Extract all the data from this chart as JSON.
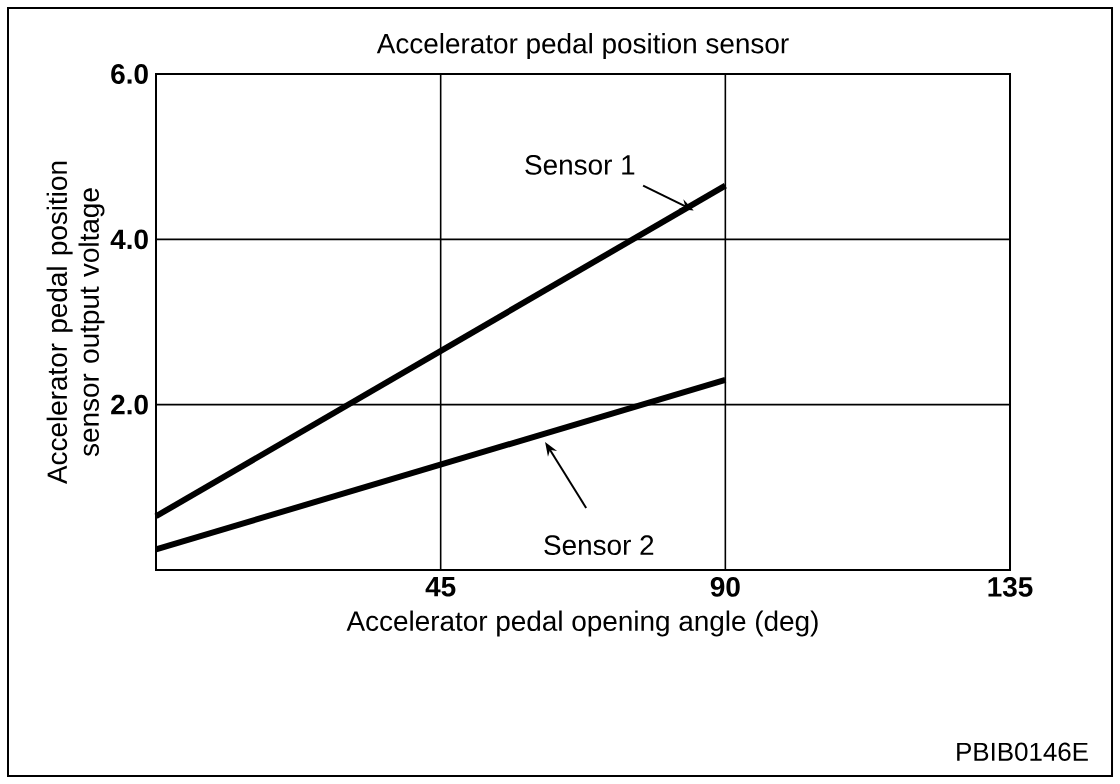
{
  "chart_data": {
    "type": "line",
    "title": "Accelerator pedal position sensor",
    "xlabel": "Accelerator pedal opening angle (deg)",
    "ylabel": "Accelerator pedal position sensor output voltage",
    "x": [
      0,
      90
    ],
    "series": [
      {
        "name": "Sensor 1",
        "color": "#000000",
        "values": [
          0.65,
          4.65
        ]
      },
      {
        "name": "Sensor 2",
        "color": "#000000",
        "values": [
          0.25,
          2.3
        ]
      }
    ],
    "xlim": [
      0,
      135
    ],
    "ylim": [
      0,
      6
    ],
    "xticks": [
      {
        "value": 0,
        "label": null
      },
      45,
      90,
      135
    ],
    "yticks": [
      {
        "value": 0,
        "label": null
      },
      {
        "value": 2,
        "label": "2.0"
      },
      {
        "value": 4,
        "label": "4.0"
      },
      {
        "value": 6,
        "label": "6.0"
      }
    ],
    "grid": true,
    "marker": "none",
    "line_style": "solid",
    "annotations": [
      "PBIB0146E"
    ]
  }
}
